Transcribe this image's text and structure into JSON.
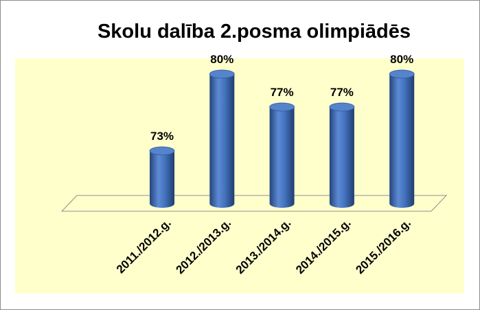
{
  "chart_data": {
    "type": "bar3d",
    "title": "Skolu dalība 2.posma olimpiādēs",
    "categories": [
      "2011./2012.g.",
      "2012./2013.g.",
      "2013./2014.g.",
      "2014./2015.g.",
      "2015./2016.g."
    ],
    "values": [
      73,
      80,
      77,
      77,
      80
    ],
    "value_labels": [
      "73%",
      "80%",
      "77%",
      "77%",
      "80%"
    ],
    "color": "#3d6bb5"
  }
}
